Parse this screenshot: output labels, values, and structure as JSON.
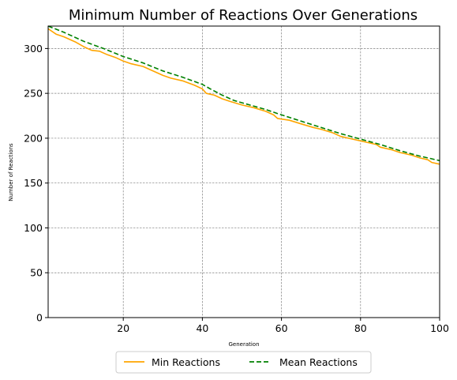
{
  "chart_data": {
    "type": "line",
    "title": "Minimum Number of Reactions Over Generations",
    "xlabel": "Generation",
    "ylabel": "Number of Reactions",
    "xlim": [
      1,
      100
    ],
    "ylim": [
      0,
      325
    ],
    "xticks": [
      20,
      40,
      60,
      80,
      100
    ],
    "yticks": [
      0,
      50,
      100,
      150,
      200,
      250,
      300
    ],
    "grid": true,
    "legend_position": "bottom-center",
    "series": [
      {
        "name": "Min Reactions",
        "color": "#ffa500",
        "style": "solid",
        "points": [
          [
            1,
            322
          ],
          [
            3,
            316
          ],
          [
            5,
            313
          ],
          [
            8,
            307
          ],
          [
            10,
            302
          ],
          [
            12,
            298
          ],
          [
            14,
            297
          ],
          [
            16,
            293
          ],
          [
            18,
            290
          ],
          [
            20,
            286
          ],
          [
            22,
            283
          ],
          [
            25,
            280
          ],
          [
            28,
            274
          ],
          [
            30,
            270
          ],
          [
            32,
            267
          ],
          [
            35,
            264
          ],
          [
            38,
            259
          ],
          [
            40,
            255
          ],
          [
            41,
            250
          ],
          [
            43,
            248
          ],
          [
            45,
            244
          ],
          [
            47,
            241
          ],
          [
            50,
            237
          ],
          [
            53,
            234
          ],
          [
            56,
            230
          ],
          [
            58,
            226
          ],
          [
            59,
            222
          ],
          [
            62,
            220
          ],
          [
            65,
            216
          ],
          [
            68,
            212
          ],
          [
            70,
            210
          ],
          [
            73,
            206
          ],
          [
            75,
            202
          ],
          [
            78,
            199
          ],
          [
            80,
            197
          ],
          [
            82,
            195
          ],
          [
            84,
            193
          ],
          [
            85,
            190
          ],
          [
            88,
            187
          ],
          [
            90,
            184
          ],
          [
            93,
            181
          ],
          [
            95,
            178
          ],
          [
            97,
            176
          ],
          [
            98,
            173
          ],
          [
            100,
            171
          ]
        ]
      },
      {
        "name": "Mean Reactions",
        "color": "#008000",
        "style": "dashed",
        "points": [
          [
            1,
            325
          ],
          [
            5,
            318
          ],
          [
            10,
            308
          ],
          [
            15,
            300
          ],
          [
            20,
            291
          ],
          [
            25,
            284
          ],
          [
            30,
            275
          ],
          [
            35,
            268
          ],
          [
            40,
            260
          ],
          [
            42,
            255
          ],
          [
            45,
            248
          ],
          [
            48,
            242
          ],
          [
            52,
            237
          ],
          [
            56,
            232
          ],
          [
            60,
            226
          ],
          [
            65,
            219
          ],
          [
            70,
            212
          ],
          [
            75,
            205
          ],
          [
            80,
            199
          ],
          [
            85,
            193
          ],
          [
            90,
            186
          ],
          [
            95,
            180
          ],
          [
            100,
            175
          ]
        ]
      }
    ]
  }
}
